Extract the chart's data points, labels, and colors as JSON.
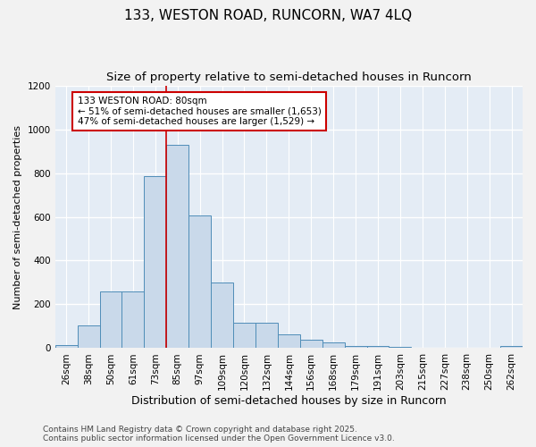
{
  "title_line1": "133, WESTON ROAD, RUNCORN, WA7 4LQ",
  "title_line2": "Size of property relative to semi-detached houses in Runcorn",
  "xlabel": "Distribution of semi-detached houses by size in Runcorn",
  "ylabel": "Number of semi-detached properties",
  "bar_color": "#c9d9ea",
  "bar_edge_color": "#4f8db8",
  "background_color": "#e4ecf5",
  "grid_color": "#ffffff",
  "categories": [
    "26sqm",
    "38sqm",
    "50sqm",
    "61sqm",
    "73sqm",
    "85sqm",
    "97sqm",
    "109sqm",
    "120sqm",
    "132sqm",
    "144sqm",
    "156sqm",
    "168sqm",
    "179sqm",
    "191sqm",
    "203sqm",
    "215sqm",
    "227sqm",
    "238sqm",
    "250sqm",
    "262sqm"
  ],
  "values": [
    15,
    105,
    260,
    260,
    785,
    930,
    605,
    300,
    115,
    115,
    65,
    40,
    25,
    12,
    8,
    5,
    2,
    1,
    1,
    1,
    8
  ],
  "ylim": [
    0,
    1200
  ],
  "yticks": [
    0,
    200,
    400,
    600,
    800,
    1000,
    1200
  ],
  "property_label": "133 WESTON ROAD: 80sqm",
  "pct_smaller": 51,
  "pct_smaller_count": 1653,
  "pct_larger": 47,
  "pct_larger_count": 1529,
  "annotation_box_color": "#ffffff",
  "annotation_box_edge": "#cc0000",
  "vline_color": "#cc0000",
  "footer_line1": "Contains HM Land Registry data © Crown copyright and database right 2025.",
  "footer_line2": "Contains public sector information licensed under the Open Government Licence v3.0.",
  "title_fontsize": 11,
  "subtitle_fontsize": 9.5,
  "tick_fontsize": 7.5,
  "xlabel_fontsize": 9,
  "ylabel_fontsize": 8,
  "footer_fontsize": 6.5
}
